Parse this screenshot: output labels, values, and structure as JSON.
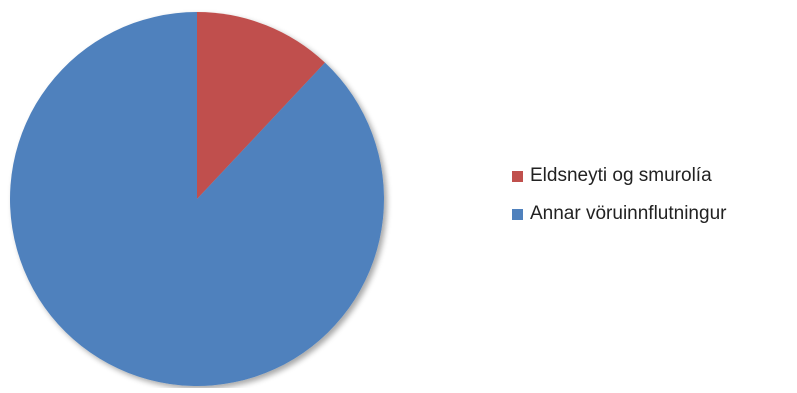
{
  "chart_data": {
    "type": "pie",
    "title": "",
    "categories": [
      "Eldsneyti og smurolía",
      "Annar vöruinnflutningur"
    ],
    "values": [
      12,
      88
    ],
    "colors": [
      "#c0504d",
      "#4f81bd"
    ],
    "start_angle_deg": 0,
    "direction": "clockwise",
    "legend_position": "right"
  }
}
